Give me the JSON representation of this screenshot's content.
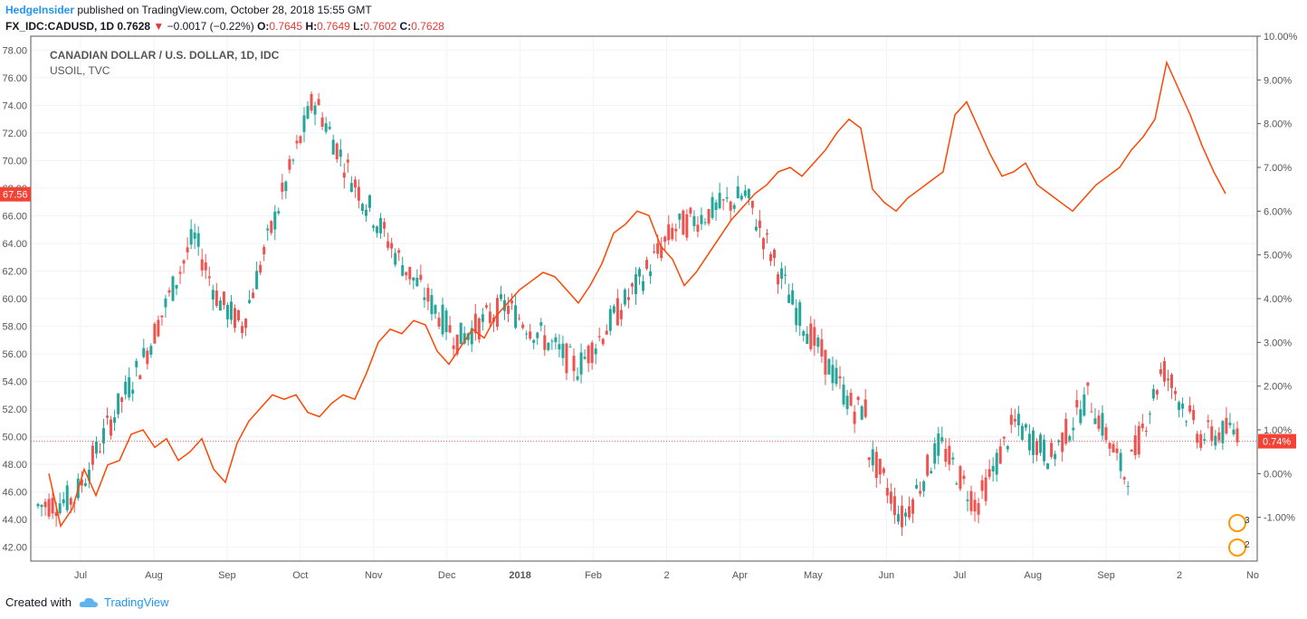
{
  "header": {
    "author": "HedgeInsider",
    "published_text": "published on TradingView.com, October 28, 2018 15:55 GMT",
    "symbol": "FX_IDC:CADUSD, 1D",
    "last": "0.7628",
    "down_arrow": "▼",
    "change": "−0.0017 (−0.22%)",
    "o_label": "O:",
    "o_val": "0.7645",
    "h_label": "H:",
    "h_val": "0.7649",
    "l_label": "L:",
    "l_val": "0.7602",
    "c_label": "C:",
    "c_val": "0.7628"
  },
  "legend": {
    "main": "CANADIAN DOLLAR / U.S. DOLLAR, 1D, IDC",
    "compare": "USOIL, TVC"
  },
  "footer": {
    "created_with": "Created with",
    "brand": "TradingView"
  },
  "colors": {
    "up": "#26a69a",
    "down": "#ef5350",
    "oil_line": "#ff4500",
    "grid": "#f0f3fa",
    "axis": "#555555",
    "price_tag": "#f44336"
  },
  "chart_data": {
    "type": "line",
    "title": "CANADIAN DOLLAR / U.S. DOLLAR, 1D, IDC",
    "x_ticks": [
      "Jul",
      "Aug",
      "Sep",
      "Oct",
      "Nov",
      "Dec",
      "2018",
      "Feb",
      "2",
      "Apr",
      "May",
      "Jun",
      "Jul",
      "Aug",
      "Sep",
      "2",
      "No"
    ],
    "left_axis": {
      "ticks": [
        "42.00",
        "44.00",
        "46.00",
        "48.00",
        "50.00",
        "52.00",
        "54.00",
        "56.00",
        "58.00",
        "60.00",
        "62.00",
        "64.00",
        "66.00",
        "68.00",
        "70.00",
        "72.00",
        "74.00",
        "76.00",
        "78.00"
      ],
      "range": [
        41.0,
        79.0
      ],
      "current_tag": "67.56"
    },
    "right_axis": {
      "ticks": [
        "-1.00%",
        "0.00%",
        "1.00%",
        "2.00%",
        "3.00%",
        "4.00%",
        "5.00%",
        "6.00%",
        "7.00%",
        "8.00%",
        "9.00%",
        "10.00%"
      ],
      "range_pct": [
        -2.0,
        10.0
      ],
      "current_tag": "0.74%"
    },
    "series": [
      {
        "name": "USOIL, TVC",
        "kind": "line",
        "axis": "right",
        "x": [
          0.0,
          0.01,
          0.02,
          0.03,
          0.04,
          0.05,
          0.06,
          0.07,
          0.08,
          0.09,
          0.1,
          0.11,
          0.12,
          0.13,
          0.14,
          0.15,
          0.16,
          0.17,
          0.18,
          0.19,
          0.2,
          0.21,
          0.22,
          0.23,
          0.24,
          0.25,
          0.26,
          0.27,
          0.28,
          0.29,
          0.3,
          0.31,
          0.32,
          0.33,
          0.34,
          0.35,
          0.36,
          0.37,
          0.38,
          0.39,
          0.4,
          0.41,
          0.42,
          0.43,
          0.44,
          0.45,
          0.46,
          0.47,
          0.48,
          0.49,
          0.5,
          0.51,
          0.52,
          0.53,
          0.54,
          0.55,
          0.56,
          0.57,
          0.58,
          0.59,
          0.6,
          0.61,
          0.62,
          0.63,
          0.64,
          0.65,
          0.66,
          0.67,
          0.68,
          0.69,
          0.7,
          0.71,
          0.72,
          0.73,
          0.74,
          0.75,
          0.76,
          0.77,
          0.78,
          0.79,
          0.8,
          0.81,
          0.82,
          0.83,
          0.84,
          0.85,
          0.86,
          0.87,
          0.88,
          0.89,
          0.9,
          0.91,
          0.92,
          0.93,
          0.94,
          0.95,
          0.96,
          0.97,
          0.98,
          0.99,
          1.0
        ],
        "values": [
          0.0,
          -1.2,
          -0.8,
          0.1,
          -0.5,
          0.2,
          0.3,
          0.9,
          1.0,
          0.6,
          0.8,
          0.3,
          0.5,
          0.8,
          0.1,
          -0.2,
          0.7,
          1.2,
          1.5,
          1.8,
          1.7,
          1.8,
          1.4,
          1.3,
          1.6,
          1.8,
          1.7,
          2.3,
          3.0,
          3.3,
          3.2,
          3.5,
          3.4,
          2.8,
          2.5,
          2.9,
          3.3,
          3.1,
          3.6,
          3.9,
          4.2,
          4.4,
          4.6,
          4.5,
          4.2,
          3.9,
          4.3,
          4.8,
          5.5,
          5.7,
          6.0,
          5.9,
          5.2,
          4.9,
          4.3,
          4.6,
          5.0,
          5.4,
          5.8,
          6.1,
          6.4,
          6.6,
          6.9,
          7.0,
          6.8,
          7.1,
          7.4,
          7.8,
          8.1,
          7.9,
          6.5,
          6.2,
          6.0,
          6.3,
          6.5,
          6.7,
          6.9,
          8.2,
          8.5,
          7.9,
          7.3,
          6.8,
          6.9,
          7.1,
          6.6,
          6.4,
          6.2,
          6.0,
          6.3,
          6.6,
          6.8,
          7.0,
          7.4,
          7.7,
          8.1,
          9.4,
          8.8,
          8.2,
          7.5,
          6.9,
          6.4
        ]
      }
    ],
    "candles_note": "CAD/USD daily candlesticks plotted on the left axis scale"
  }
}
